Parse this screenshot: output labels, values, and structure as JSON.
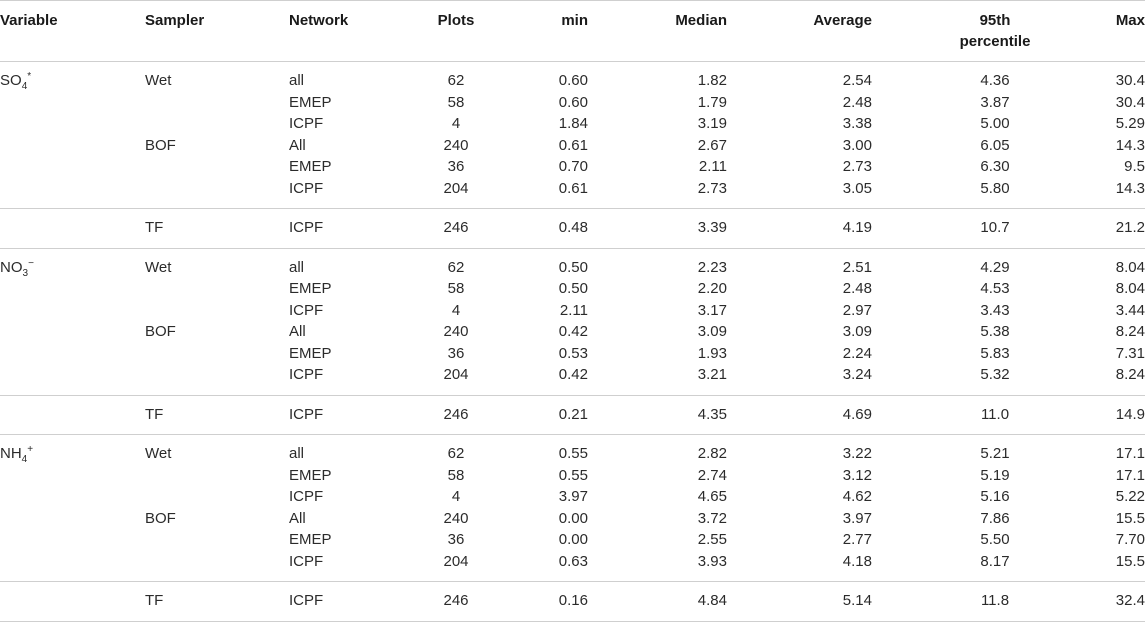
{
  "headers": {
    "variable": "Variable",
    "sampler": "Sampler",
    "network": "Network",
    "plots": "Plots",
    "min": "min",
    "median": "Median",
    "average": "Average",
    "p95_line1": "95th",
    "p95_line2": "percentile",
    "max": "Max"
  },
  "groups": [
    {
      "variable": {
        "base": "SO",
        "sub": "4",
        "sup": "*"
      },
      "blocks": [
        {
          "rows": [
            {
              "sampler": "Wet",
              "network": "all",
              "plots": "62",
              "min": "0.60",
              "median": "1.82",
              "average": "2.54",
              "p95": "4.36",
              "max": "30.4"
            },
            {
              "sampler": "",
              "network": "EMEP",
              "plots": "58",
              "min": "0.60",
              "median": "1.79",
              "average": "2.48",
              "p95": "3.87",
              "max": "30.4"
            },
            {
              "sampler": "",
              "network": "ICPF",
              "plots": "4",
              "min": "1.84",
              "median": "3.19",
              "average": "3.38",
              "p95": "5.00",
              "max": "5.29"
            },
            {
              "sampler": "BOF",
              "network": "All",
              "plots": "240",
              "min": "0.61",
              "median": "2.67",
              "average": "3.00",
              "p95": "6.05",
              "max": "14.3"
            },
            {
              "sampler": "",
              "network": "EMEP",
              "plots": "36",
              "min": "0.70",
              "median": "2.11",
              "average": "2.73",
              "p95": "6.30",
              "max": "9.5"
            },
            {
              "sampler": "",
              "network": "ICPF",
              "plots": "204",
              "min": "0.61",
              "median": "2.73",
              "average": "3.05",
              "p95": "5.80",
              "max": "14.3"
            }
          ]
        },
        {
          "rows": [
            {
              "sampler": "TF",
              "network": "ICPF",
              "plots": "246",
              "min": "0.48",
              "median": "3.39",
              "average": "4.19",
              "p95": "10.7",
              "max": "21.2"
            }
          ]
        }
      ]
    },
    {
      "variable": {
        "base": "NO",
        "sub": "3",
        "sup": "−"
      },
      "blocks": [
        {
          "rows": [
            {
              "sampler": "Wet",
              "network": "all",
              "plots": "62",
              "min": "0.50",
              "median": "2.23",
              "average": "2.51",
              "p95": "4.29",
              "max": "8.04"
            },
            {
              "sampler": "",
              "network": "EMEP",
              "plots": "58",
              "min": "0.50",
              "median": "2.20",
              "average": "2.48",
              "p95": "4.53",
              "max": "8.04"
            },
            {
              "sampler": "",
              "network": "ICPF",
              "plots": "4",
              "min": "2.11",
              "median": "3.17",
              "average": "2.97",
              "p95": "3.43",
              "max": "3.44"
            },
            {
              "sampler": "BOF",
              "network": "All",
              "plots": "240",
              "min": "0.42",
              "median": "3.09",
              "average": "3.09",
              "p95": "5.38",
              "max": "8.24"
            },
            {
              "sampler": "",
              "network": "EMEP",
              "plots": "36",
              "min": "0.53",
              "median": "1.93",
              "average": "2.24",
              "p95": "5.83",
              "max": "7.31"
            },
            {
              "sampler": "",
              "network": "ICPF",
              "plots": "204",
              "min": "0.42",
              "median": "3.21",
              "average": "3.24",
              "p95": "5.32",
              "max": "8.24"
            }
          ]
        },
        {
          "rows": [
            {
              "sampler": "TF",
              "network": "ICPF",
              "plots": "246",
              "min": "0.21",
              "median": "4.35",
              "average": "4.69",
              "p95": "11.0",
              "max": "14.9"
            }
          ]
        }
      ]
    },
    {
      "variable": {
        "base": "NH",
        "sub": "4",
        "sup": "+"
      },
      "blocks": [
        {
          "rows": [
            {
              "sampler": "Wet",
              "network": "all",
              "plots": "62",
              "min": "0.55",
              "median": "2.82",
              "average": "3.22",
              "p95": "5.21",
              "max": "17.1"
            },
            {
              "sampler": "",
              "network": "EMEP",
              "plots": "58",
              "min": "0.55",
              "median": "2.74",
              "average": "3.12",
              "p95": "5.19",
              "max": "17.1"
            },
            {
              "sampler": "",
              "network": "ICPF",
              "plots": "4",
              "min": "3.97",
              "median": "4.65",
              "average": "4.62",
              "p95": "5.16",
              "max": "5.22"
            },
            {
              "sampler": "BOF",
              "network": "All",
              "plots": "240",
              "min": "0.00",
              "median": "3.72",
              "average": "3.97",
              "p95": "7.86",
              "max": "15.5"
            },
            {
              "sampler": "",
              "network": "EMEP",
              "plots": "36",
              "min": "0.00",
              "median": "2.55",
              "average": "2.77",
              "p95": "5.50",
              "max": "7.70"
            },
            {
              "sampler": "",
              "network": "ICPF",
              "plots": "204",
              "min": "0.63",
              "median": "3.93",
              "average": "4.18",
              "p95": "8.17",
              "max": "15.5"
            }
          ]
        },
        {
          "rows": [
            {
              "sampler": "TF",
              "network": "ICPF",
              "plots": "246",
              "min": "0.16",
              "median": "4.84",
              "average": "5.14",
              "p95": "11.8",
              "max": "32.4"
            }
          ]
        }
      ]
    }
  ]
}
